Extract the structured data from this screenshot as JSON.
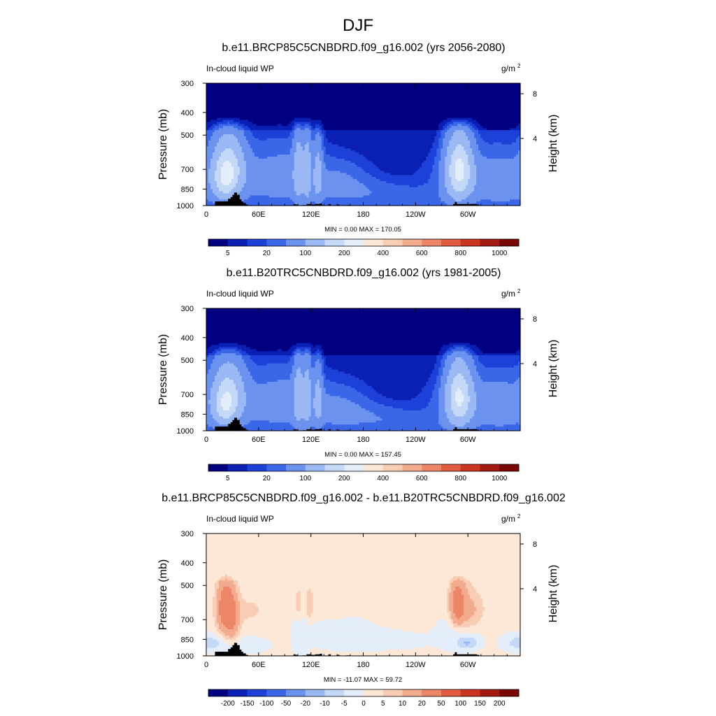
{
  "figure_title": "DJF",
  "chart_data": [
    {
      "type": "heatmap",
      "title": "b.e11.BRCP85C5CNBDRD.f09_g16.002 (yrs 2056-2080)",
      "field_label": "In-cloud liquid WP",
      "units_base": "g/m",
      "units_exp": "2",
      "ylabel": "Pressure (mb)",
      "ylabel_right": "Height (km)",
      "x_ticks": [
        "0",
        "60E",
        "120E",
        "180",
        "120W",
        "60W"
      ],
      "y_ticks": [
        "300",
        "400",
        "500",
        "700",
        "850",
        "1000"
      ],
      "y_right_ticks": [
        "8",
        "4"
      ],
      "stats": "MIN =   0.00  MAX = 170.05",
      "colorbar_labels": [
        "5",
        "20",
        "100",
        "200",
        "400",
        "600",
        "800",
        "1000"
      ],
      "colorbar_colors": [
        "#000080",
        "#0a1fb4",
        "#1c40d8",
        "#3a66e8",
        "#6a92ee",
        "#9ab8f4",
        "#c4d8f8",
        "#e4edfa",
        "#fde8d8",
        "#f8cdb4",
        "#f3ab8e",
        "#ec8667",
        "#e25b40",
        "#cb3322",
        "#a51a10",
        "#7a0603"
      ],
      "range": [
        0,
        170.05
      ],
      "scale": "pos",
      "fields": {
        "base": 2,
        "top": 0,
        "blobs": [
          {
            "lon": 25,
            "p": 700,
            "slon": 12,
            "sp": 140,
            "amp": 140
          },
          {
            "lon": 20,
            "p": 800,
            "slon": 8,
            "sp": 90,
            "amp": 50
          },
          {
            "lon": 106,
            "p": 700,
            "slon": 4,
            "sp": 160,
            "amp": 70
          },
          {
            "lon": 116,
            "p": 700,
            "slon": 3,
            "sp": 170,
            "amp": 65
          },
          {
            "lon": 128,
            "p": 720,
            "slon": 3.5,
            "sp": 150,
            "amp": 55
          },
          {
            "lon": 100,
            "p": 760,
            "slon": 22,
            "sp": 150,
            "amp": 22
          },
          {
            "lon": 150,
            "p": 800,
            "slon": 25,
            "sp": 120,
            "amp": 20
          },
          {
            "lon": 190,
            "p": 880,
            "slon": 40,
            "sp": 80,
            "amp": 12
          },
          {
            "lon": 290,
            "p": 700,
            "slon": 10,
            "sp": 150,
            "amp": 150
          },
          {
            "lon": 305,
            "p": 780,
            "slon": 30,
            "sp": 140,
            "amp": 25
          },
          {
            "lon": 345,
            "p": 800,
            "slon": 20,
            "sp": 150,
            "amp": 22
          },
          {
            "lon": 60,
            "p": 770,
            "slon": 25,
            "sp": 160,
            "amp": 20
          },
          {
            "lon": 240,
            "p": 950,
            "slon": 30,
            "sp": 60,
            "amp": 10
          }
        ]
      }
    },
    {
      "type": "heatmap",
      "title": "b.e11.B20TRC5CNBDRD.f09_g16.002 (yrs 1981-2005)",
      "field_label": "In-cloud liquid WP",
      "units_base": "g/m",
      "units_exp": "2",
      "ylabel": "Pressure (mb)",
      "ylabel_right": "Height (km)",
      "x_ticks": [
        "0",
        "60E",
        "120E",
        "180",
        "120W",
        "60W"
      ],
      "y_ticks": [
        "300",
        "400",
        "500",
        "700",
        "850",
        "1000"
      ],
      "y_right_ticks": [
        "8",
        "4"
      ],
      "stats": "MIN =   0.00  MAX = 157.45",
      "colorbar_labels": [
        "5",
        "20",
        "100",
        "200",
        "400",
        "600",
        "800",
        "1000"
      ],
      "colorbar_colors": [
        "#000080",
        "#0a1fb4",
        "#1c40d8",
        "#3a66e8",
        "#6a92ee",
        "#9ab8f4",
        "#c4d8f8",
        "#e4edfa",
        "#fde8d8",
        "#f8cdb4",
        "#f3ab8e",
        "#ec8667",
        "#e25b40",
        "#cb3322",
        "#a51a10",
        "#7a0603"
      ],
      "range": [
        0,
        157.45
      ],
      "scale": "pos",
      "fields": {
        "base": 2,
        "top": 0,
        "blobs": [
          {
            "lon": 25,
            "p": 710,
            "slon": 12,
            "sp": 140,
            "amp": 125
          },
          {
            "lon": 20,
            "p": 810,
            "slon": 8,
            "sp": 90,
            "amp": 50
          },
          {
            "lon": 106,
            "p": 700,
            "slon": 4,
            "sp": 160,
            "amp": 65
          },
          {
            "lon": 116,
            "p": 700,
            "slon": 3,
            "sp": 170,
            "amp": 60
          },
          {
            "lon": 128,
            "p": 720,
            "slon": 3.5,
            "sp": 150,
            "amp": 50
          },
          {
            "lon": 100,
            "p": 760,
            "slon": 22,
            "sp": 150,
            "amp": 22
          },
          {
            "lon": 150,
            "p": 800,
            "slon": 25,
            "sp": 120,
            "amp": 20
          },
          {
            "lon": 190,
            "p": 880,
            "slon": 40,
            "sp": 80,
            "amp": 14
          },
          {
            "lon": 290,
            "p": 710,
            "slon": 10,
            "sp": 150,
            "amp": 140
          },
          {
            "lon": 305,
            "p": 780,
            "slon": 30,
            "sp": 140,
            "amp": 25
          },
          {
            "lon": 345,
            "p": 790,
            "slon": 20,
            "sp": 150,
            "amp": 22
          },
          {
            "lon": 60,
            "p": 770,
            "slon": 25,
            "sp": 160,
            "amp": 20
          },
          {
            "lon": 240,
            "p": 950,
            "slon": 30,
            "sp": 60,
            "amp": 10
          }
        ]
      }
    },
    {
      "type": "heatmap",
      "title": "b.e11.BRCP85C5CNBDRD.f09_g16.002 - b.e11.B20TRC5CNBDRD.f09_g16.002",
      "field_label": "In-cloud liquid WP",
      "units_base": "g/m",
      "units_exp": "2",
      "ylabel": "Pressure (mb)",
      "ylabel_right": "Height (km)",
      "x_ticks": [
        "0",
        "60E",
        "120E",
        "180",
        "120W",
        "60W"
      ],
      "y_ticks": [
        "300",
        "400",
        "500",
        "700",
        "850",
        "1000"
      ],
      "y_right_ticks": [
        "8",
        "4"
      ],
      "stats": "MIN = -11.07  MAX =  59.72",
      "colorbar_labels": [
        "-200",
        "-150",
        "-100",
        "-50",
        "-20",
        "-10",
        "-5",
        "0",
        "5",
        "10",
        "20",
        "50",
        "100",
        "150",
        "200"
      ],
      "colorbar_colors": [
        "#000080",
        "#0a1fb4",
        "#1c40d8",
        "#3a66e8",
        "#6a92ee",
        "#9ab8f4",
        "#c4d8f8",
        "#e4edfa",
        "#fde8d8",
        "#f8cdb4",
        "#f3ab8e",
        "#ec8667",
        "#e25b40",
        "#cb3322",
        "#a51a10",
        "#7a0603"
      ],
      "range": [
        -11.07,
        59.72
      ],
      "scale": "diff",
      "fields": {
        "base": 1,
        "top": 0,
        "blobs": [
          {
            "lon": 22,
            "p": 620,
            "slon": 7,
            "sp": 110,
            "amp": 30
          },
          {
            "lon": 30,
            "p": 700,
            "slon": 6,
            "sp": 120,
            "amp": 14
          },
          {
            "lon": 288,
            "p": 600,
            "slon": 6,
            "sp": 100,
            "amp": 28
          },
          {
            "lon": 300,
            "p": 650,
            "slon": 8,
            "sp": 120,
            "amp": 8
          },
          {
            "lon": 106,
            "p": 600,
            "slon": 3,
            "sp": 80,
            "amp": 7
          },
          {
            "lon": 118,
            "p": 600,
            "slon": 3,
            "sp": 80,
            "amp": 7
          },
          {
            "lon": 140,
            "p": 620,
            "slon": 20,
            "sp": 60,
            "amp": 4
          },
          {
            "lon": 50,
            "p": 640,
            "slon": 15,
            "sp": 70,
            "amp": 5
          },
          {
            "lon": 310,
            "p": 640,
            "slon": 10,
            "sp": 80,
            "amp": 5
          },
          {
            "lon": 5,
            "p": 880,
            "slon": 10,
            "sp": 40,
            "amp": -6
          },
          {
            "lon": 40,
            "p": 900,
            "slon": 20,
            "sp": 50,
            "amp": -5
          },
          {
            "lon": 108,
            "p": 800,
            "slon": 6,
            "sp": 150,
            "amp": -4
          },
          {
            "lon": 150,
            "p": 780,
            "slon": 25,
            "sp": 90,
            "amp": -4
          },
          {
            "lon": 200,
            "p": 860,
            "slon": 40,
            "sp": 60,
            "amp": -3
          },
          {
            "lon": 290,
            "p": 800,
            "slon": 15,
            "sp": 90,
            "amp": -6
          },
          {
            "lon": 300,
            "p": 880,
            "slon": 8,
            "sp": 40,
            "amp": -10
          },
          {
            "lon": 355,
            "p": 880,
            "slon": 12,
            "sp": 50,
            "amp": -5
          }
        ]
      }
    }
  ],
  "topography": {
    "lon": [
      10,
      15,
      20,
      25,
      28,
      30,
      32,
      35,
      38,
      40,
      42,
      45,
      100,
      102,
      110,
      115,
      120,
      125,
      130,
      140,
      150,
      160,
      165,
      283,
      285,
      287,
      290,
      295,
      300,
      305,
      310
    ],
    "top_p": [
      960,
      960,
      960,
      935,
      920,
      900,
      880,
      900,
      940,
      960,
      975,
      990,
      985,
      990,
      995,
      985,
      990,
      985,
      980,
      985,
      990,
      995,
      1000,
      985,
      965,
      985,
      985,
      985,
      985,
      985,
      990
    ]
  }
}
